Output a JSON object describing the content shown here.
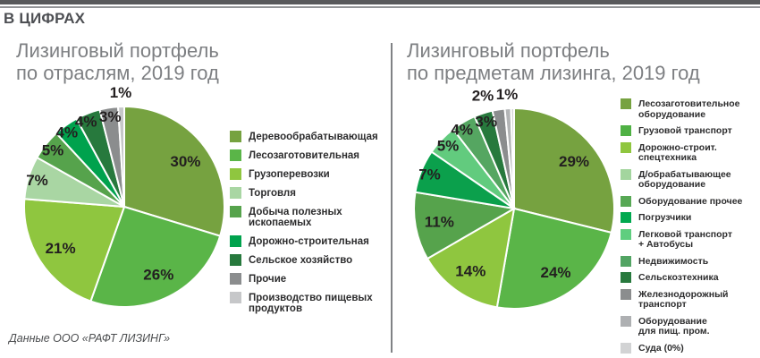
{
  "page": {
    "kicker": "В ЦИФРАХ",
    "source_note": "Данные ООО «РАФТ ЛИЗИНГ»"
  },
  "chart_data": [
    {
      "type": "pie",
      "title": "Лизинговый портфель\nпо отраслям, 2019 год",
      "unit": "%",
      "legend_position": "right",
      "slices": [
        {
          "label": "Деревообрабатывающая",
          "value": 30,
          "display": "30%",
          "color": "#76a240"
        },
        {
          "label": "Лесозаготовительная",
          "value": 26,
          "display": "26%",
          "color": "#5ab548"
        },
        {
          "label": "Грузоперевозки",
          "value": 21,
          "display": "21%",
          "color": "#8fc63f"
        },
        {
          "label": "Торговля",
          "value": 7,
          "display": "7%",
          "color": "#a9d6a3"
        },
        {
          "label": "Добыча полезных ископаемых",
          "value": 5,
          "display": "5%",
          "color": "#56a34c"
        },
        {
          "label": "Дорожно-строительная",
          "value": 4,
          "display": "4%",
          "color": "#00a24d"
        },
        {
          "label": "Сельское хозяйство",
          "value": 4,
          "display": "4%",
          "color": "#27793d"
        },
        {
          "label": "Прочие",
          "value": 3,
          "display": "3%",
          "color": "#8b8d8e"
        },
        {
          "label": "Производство пищевых продуктов",
          "value": 1,
          "display": "1%",
          "color": "#c6c7c9"
        }
      ],
      "legend": [
        {
          "label": "Деревообрабатывающая",
          "color": "#76a240"
        },
        {
          "label": "Лесозаготовительная",
          "color": "#5ab548"
        },
        {
          "label": "Грузоперевозки",
          "color": "#8fc63f"
        },
        {
          "label": "Торговля",
          "color": "#a9d6a3"
        },
        {
          "label": "Добыча полезных\nископаемых",
          "color": "#56a34c"
        },
        {
          "label": "Дорожно-строительная",
          "color": "#00a24d"
        },
        {
          "label": "Сельское хозяйство",
          "color": "#27793d"
        },
        {
          "label": "Прочие",
          "color": "#8b8d8e"
        },
        {
          "label": "Производство пищевых\nпродуктов",
          "color": "#c6c7c9"
        }
      ]
    },
    {
      "type": "pie",
      "title": "Лизинговый портфель\nпо предметам лизинга, 2019 год",
      "unit": "%",
      "legend_position": "right",
      "slices": [
        {
          "label": "Лесозаготовительное оборудование",
          "value": 29,
          "display": "29%",
          "color": "#76a240"
        },
        {
          "label": "Грузовой транспорт",
          "value": 24,
          "display": "24%",
          "color": "#5ab548"
        },
        {
          "label": "Дорожно-строит. спецтехника",
          "value": 14,
          "display": "14%",
          "color": "#8fc63f"
        },
        {
          "label": "Д/обрабатывающее оборудование",
          "value": 11,
          "display": "11%",
          "color": "#56a34c"
        },
        {
          "label": "Оборудование прочее",
          "value": 7,
          "display": "7%",
          "color": "#0ba04c"
        },
        {
          "label": "Погрузчики",
          "value": 5,
          "display": "5%",
          "color": "#62cb7e"
        },
        {
          "label": "Легковой транспорт + Автобусы",
          "value": 4,
          "display": "4%",
          "color": "#55a661"
        },
        {
          "label": "Недвижимость",
          "value": 3,
          "display": "3%",
          "color": "#27793d"
        },
        {
          "label": "Сельскозтехника",
          "value": 2,
          "display": "2%",
          "color": "#8b8d8e"
        },
        {
          "label": "Железнодорожный транспорт",
          "value": 1,
          "display": "1%",
          "color": "#b3b5b6"
        },
        {
          "label": "Оборудование для пищ. пром.",
          "value": 0.5,
          "display": "",
          "color": "#d4d5d6"
        },
        {
          "label": "Суда",
          "value": 0,
          "display": "",
          "color": "#d2d3d4"
        }
      ],
      "legend": [
        {
          "label": "Лесозаготовительное\nоборудование",
          "color": "#76a240"
        },
        {
          "label": "Грузовой транспорт",
          "color": "#4fb144"
        },
        {
          "label": "Дорожно-строит.\nспецтехника",
          "color": "#8fc63f"
        },
        {
          "label": "Д/обрабатывающее\nоборудование",
          "color": "#a3d59e"
        },
        {
          "label": "Оборудование прочее",
          "color": "#57a855"
        },
        {
          "label": "Погрузчики",
          "color": "#00a94f"
        },
        {
          "label": "Легковой транспорт\n+ Автобусы",
          "color": "#5fce7f"
        },
        {
          "label": "Недвижимость",
          "color": "#52a463"
        },
        {
          "label": "Сельскозтехника",
          "color": "#27793d"
        },
        {
          "label": "Железнодорожный\nтранспорт",
          "color": "#8b8d8e"
        },
        {
          "label": "Оборудование\nдля пищ. пром.",
          "color": "#aeb0b2"
        },
        {
          "label": "Суда (0%)",
          "color": "#d2d3d4"
        }
      ]
    }
  ]
}
